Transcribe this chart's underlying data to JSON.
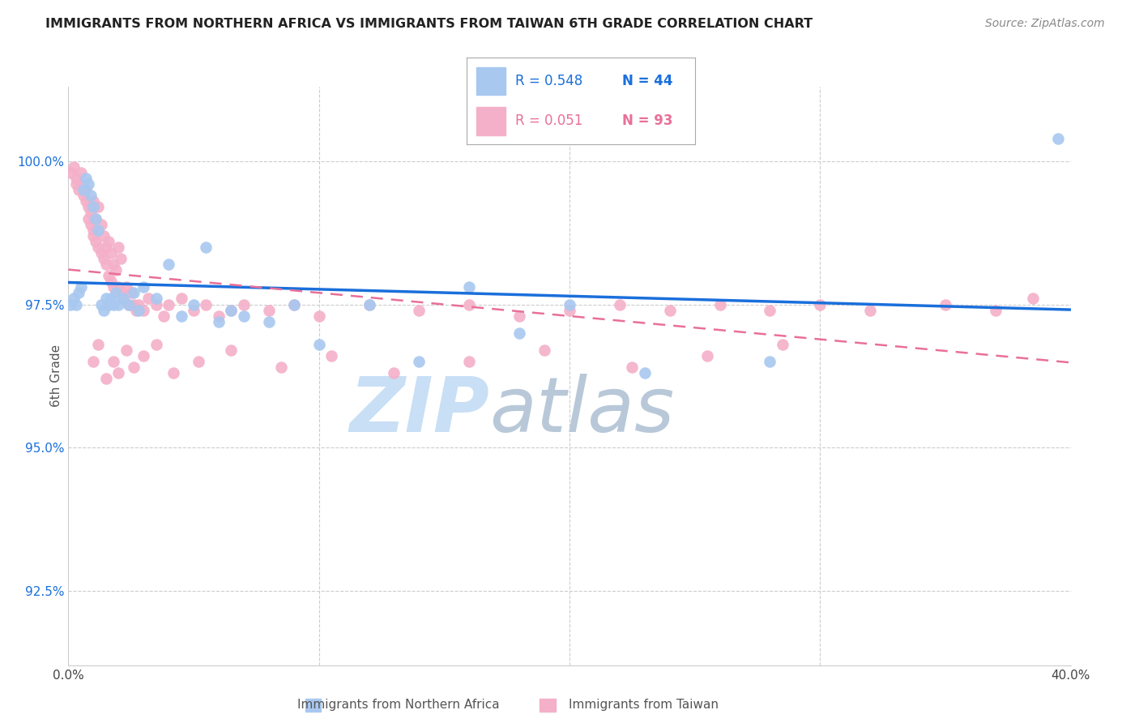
{
  "title": "IMMIGRANTS FROM NORTHERN AFRICA VS IMMIGRANTS FROM TAIWAN 6TH GRADE CORRELATION CHART",
  "source": "Source: ZipAtlas.com",
  "ylabel": "6th Grade",
  "yaxis_values": [
    92.5,
    95.0,
    97.5,
    100.0
  ],
  "xmin": 0.0,
  "xmax": 40.0,
  "ymin": 91.2,
  "ymax": 101.3,
  "legend_blue_r": "R = 0.548",
  "legend_blue_n": "N = 44",
  "legend_pink_r": "R = 0.051",
  "legend_pink_n": "N = 93",
  "label_blue": "Immigrants from Northern Africa",
  "label_pink": "Immigrants from Taiwan",
  "blue_scatter_x": [
    0.1,
    0.2,
    0.3,
    0.4,
    0.5,
    0.6,
    0.7,
    0.8,
    0.9,
    1.0,
    1.1,
    1.2,
    1.3,
    1.4,
    1.5,
    1.6,
    1.7,
    1.8,
    1.9,
    2.0,
    2.2,
    2.4,
    2.6,
    2.8,
    3.0,
    3.5,
    4.0,
    4.5,
    5.0,
    5.5,
    6.0,
    6.5,
    7.0,
    8.0,
    9.0,
    10.0,
    12.0,
    14.0,
    16.0,
    18.0,
    20.0,
    23.0,
    28.0,
    39.5
  ],
  "blue_scatter_y": [
    97.5,
    97.6,
    97.5,
    97.7,
    97.8,
    99.5,
    99.7,
    99.6,
    99.4,
    99.2,
    99.0,
    98.8,
    97.5,
    97.4,
    97.6,
    97.5,
    97.6,
    97.5,
    97.7,
    97.5,
    97.6,
    97.5,
    97.7,
    97.4,
    97.8,
    97.6,
    98.2,
    97.3,
    97.5,
    98.5,
    97.2,
    97.4,
    97.3,
    97.2,
    97.5,
    96.8,
    97.5,
    96.5,
    97.8,
    97.0,
    97.5,
    96.3,
    96.5,
    100.4
  ],
  "pink_scatter_x": [
    0.1,
    0.2,
    0.3,
    0.3,
    0.4,
    0.5,
    0.5,
    0.6,
    0.7,
    0.7,
    0.8,
    0.8,
    0.9,
    0.9,
    1.0,
    1.0,
    1.0,
    1.1,
    1.1,
    1.2,
    1.2,
    1.3,
    1.3,
    1.4,
    1.4,
    1.5,
    1.5,
    1.6,
    1.6,
    1.7,
    1.7,
    1.8,
    1.8,
    1.9,
    2.0,
    2.0,
    2.1,
    2.1,
    2.2,
    2.3,
    2.4,
    2.5,
    2.6,
    2.7,
    2.8,
    3.0,
    3.2,
    3.5,
    3.8,
    4.0,
    4.5,
    5.0,
    5.5,
    6.0,
    6.5,
    7.0,
    8.0,
    9.0,
    10.0,
    12.0,
    14.0,
    16.0,
    18.0,
    20.0,
    22.0,
    24.0,
    26.0,
    28.0,
    30.0,
    32.0,
    35.0,
    37.0,
    38.5,
    1.0,
    1.2,
    1.5,
    1.8,
    2.0,
    2.3,
    2.6,
    3.0,
    3.5,
    4.2,
    5.2,
    6.5,
    8.5,
    10.5,
    13.0,
    16.0,
    19.0,
    22.5,
    25.5,
    28.5
  ],
  "pink_scatter_y": [
    99.8,
    99.9,
    99.7,
    99.6,
    99.5,
    99.8,
    99.6,
    99.4,
    99.5,
    99.3,
    99.2,
    99.0,
    99.1,
    98.9,
    98.8,
    99.3,
    98.7,
    98.6,
    99.0,
    98.5,
    99.2,
    98.4,
    98.9,
    98.3,
    98.7,
    98.5,
    98.2,
    98.6,
    98.0,
    98.4,
    97.9,
    98.2,
    97.8,
    98.1,
    97.8,
    98.5,
    97.7,
    98.3,
    97.6,
    97.8,
    97.5,
    97.7,
    97.5,
    97.4,
    97.5,
    97.4,
    97.6,
    97.5,
    97.3,
    97.5,
    97.6,
    97.4,
    97.5,
    97.3,
    97.4,
    97.5,
    97.4,
    97.5,
    97.3,
    97.5,
    97.4,
    97.5,
    97.3,
    97.4,
    97.5,
    97.4,
    97.5,
    97.4,
    97.5,
    97.4,
    97.5,
    97.4,
    97.6,
    96.5,
    96.8,
    96.2,
    96.5,
    96.3,
    96.7,
    96.4,
    96.6,
    96.8,
    96.3,
    96.5,
    96.7,
    96.4,
    96.6,
    96.3,
    96.5,
    96.7,
    96.4,
    96.6,
    96.8
  ],
  "blue_line_color": "#1a6fdb",
  "pink_line_color": "#e87098",
  "blue_scatter_color": "#a8c8f0",
  "pink_scatter_color": "#f4b0c8",
  "grid_color": "#cccccc",
  "watermark_zip": "ZIP",
  "watermark_atlas": "atlas",
  "watermark_color_zip": "#c8dff5",
  "watermark_color_atlas": "#b8c8d8"
}
